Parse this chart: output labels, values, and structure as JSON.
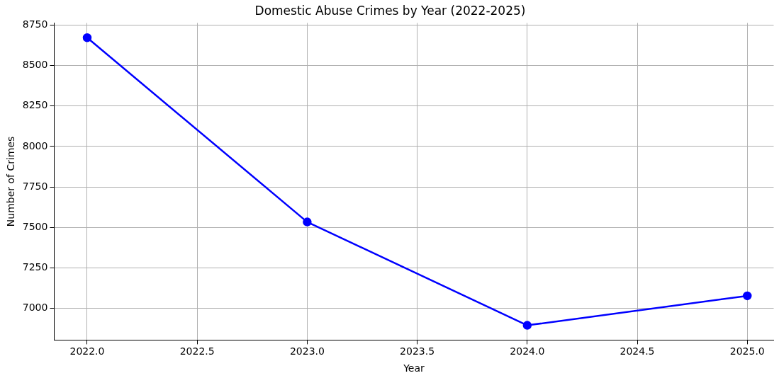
{
  "chart_data": {
    "type": "line",
    "title": "Domestic Abuse Crimes by Year (2022-2025)",
    "xlabel": "Year",
    "ylabel": "Number of Crimes",
    "x": [
      2022,
      2023,
      2024,
      2025
    ],
    "series": [
      {
        "color": "#0000ff",
        "values": [
          8672,
          7534,
          6896,
          7078
        ]
      }
    ],
    "xlim": [
      2021.85,
      2025.12
    ],
    "xticks": [
      {
        "value": 2022,
        "label": "2022.0"
      },
      {
        "value": 2022.5,
        "label": "2022.5"
      },
      {
        "value": 2023,
        "label": "2023.0"
      },
      {
        "value": 2023.5,
        "label": "2023.5"
      },
      {
        "value": 2024,
        "label": "2024.0"
      },
      {
        "value": 2024.5,
        "label": "2024.5"
      },
      {
        "value": 2025,
        "label": "2025.0"
      }
    ],
    "ylim": [
      6805,
      8763
    ],
    "yticks": [
      7000,
      7250,
      7500,
      7750,
      8000,
      8250,
      8500,
      8750
    ],
    "grid": true,
    "marker": "circle",
    "line_style": "solid"
  }
}
